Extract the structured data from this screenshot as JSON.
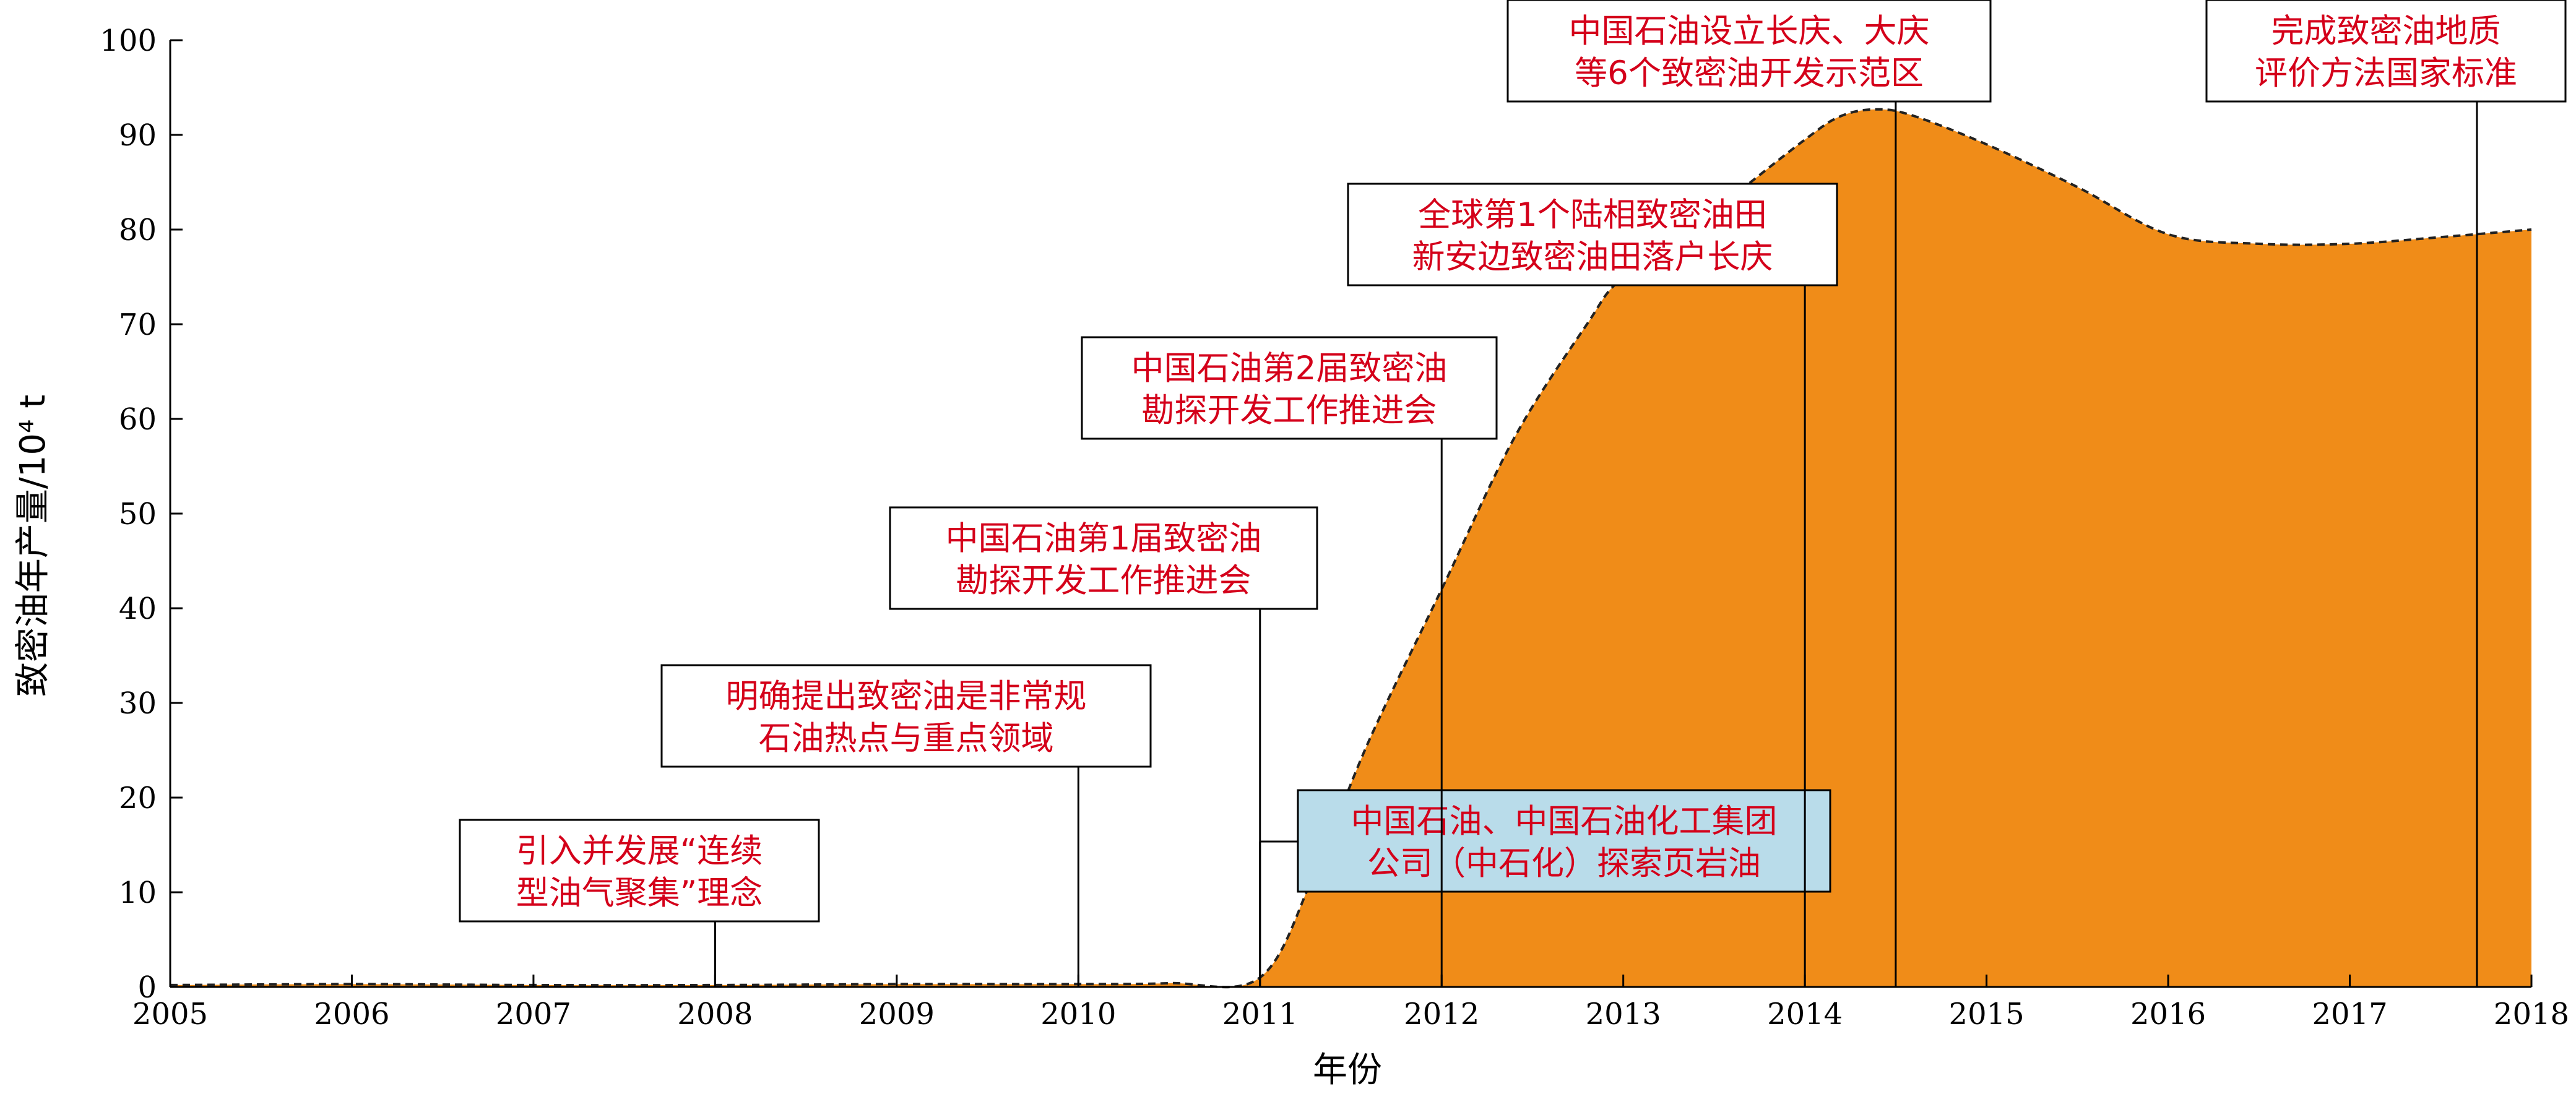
{
  "chart_data": {
    "type": "area",
    "title": "",
    "xlabel": "年份",
    "ylabel": "致密油年产量/10⁴ t",
    "xlim": [
      2005,
      2018
    ],
    "ylim": [
      0,
      100
    ],
    "xticks": [
      2005,
      2006,
      2007,
      2008,
      2009,
      2010,
      2011,
      2012,
      2013,
      2014,
      2015,
      2016,
      2017,
      2018
    ],
    "yticks": [
      0,
      10,
      20,
      30,
      40,
      50,
      60,
      70,
      80,
      90,
      100
    ],
    "grid": false,
    "legend": "none",
    "series": [
      {
        "x": [
          2005,
          2006,
          2007,
          2008,
          2009,
          2010,
          2010.5,
          2011,
          2011.3,
          2011.6,
          2012,
          2012.4,
          2012.8,
          2013,
          2013.5,
          2014,
          2014.2,
          2014.4,
          2014.6,
          2015,
          2015.5,
          2016,
          2016.5,
          2017,
          2017.5,
          2018
        ],
        "y": [
          0.2,
          0.3,
          0.2,
          0.2,
          0.3,
          0.3,
          0.4,
          1,
          12,
          26,
          42,
          58,
          70,
          75,
          82,
          89.5,
          92,
          92.7,
          92,
          89,
          84.5,
          79.5,
          78.5,
          78.5,
          79.2,
          80
        ]
      }
    ],
    "colors": {
      "fill": "#f08c18",
      "outline": "#222222",
      "text_red": "#d4001a",
      "highlight_box": "#b9dcea"
    },
    "annotations": [
      {
        "lines": [
          "引入并发展“连续",
          "型油气聚集”理念"
        ],
        "x": 2008
      },
      {
        "lines": [
          "明确提出致密油是非常规",
          "石油热点与重点领域"
        ],
        "x": 2010
      },
      {
        "lines": [
          "中国石油、中国石油化工集团",
          "公司（中石化）探索页岩油"
        ],
        "x": 2011
      },
      {
        "lines": [
          "中国石油第1届致密油",
          "勘探开发工作推进会"
        ],
        "x": 2011
      },
      {
        "lines": [
          "中国石油第2届致密油",
          "勘探开发工作推进会"
        ],
        "x": 2012
      },
      {
        "lines": [
          "全球第1个陆相致密油田",
          "新安边致密油田落户长庆"
        ],
        "x": 2014
      },
      {
        "lines": [
          "中国石油设立长庆、大庆",
          "等6个致密油开发示范区"
        ],
        "x": 2014.5
      },
      {
        "lines": [
          "完成致密油地质",
          "评价方法国家标准"
        ],
        "x": 2017.7
      }
    ]
  }
}
